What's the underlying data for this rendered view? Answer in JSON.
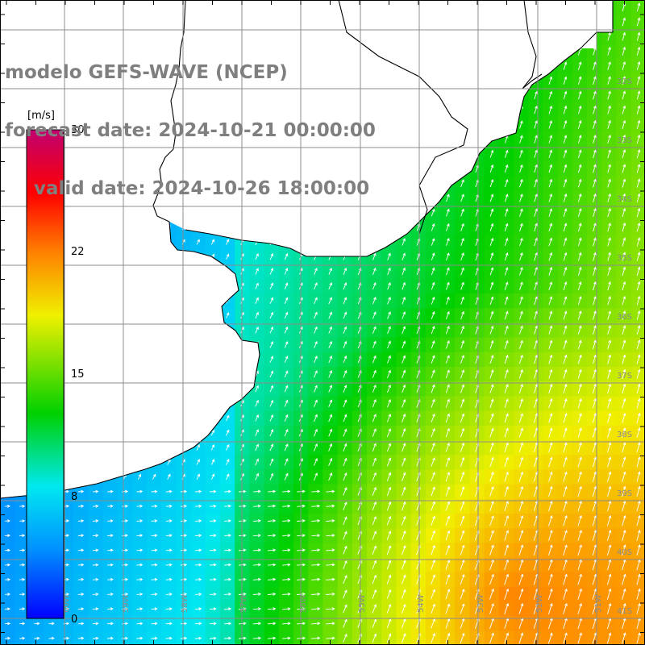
{
  "header": {
    "model": "modelo GEFS-WAVE (NCEP)",
    "forecast": "forecast date: 2024-10-21 00:00:00",
    "valid": "valid date: 2024-10-26 18:00:00"
  },
  "colorbar": {
    "unit": "[m/s]",
    "ticks": [
      {
        "value": 30,
        "label": "30"
      },
      {
        "value": 22,
        "label": "22"
      },
      {
        "value": 15,
        "label": "15"
      },
      {
        "value": 8,
        "label": "8"
      },
      {
        "value": 0,
        "label": "0"
      }
    ],
    "range": [
      0,
      30
    ],
    "gradient_colors": [
      "#0000ff",
      "#0090ff",
      "#00e8f0",
      "#00d000",
      "#7ae000",
      "#f0f000",
      "#ff8000",
      "#ff0000",
      "#c00070"
    ]
  },
  "map": {
    "latitude_labels": [
      "32S",
      "33S",
      "34S",
      "35S",
      "36S",
      "37S",
      "38S",
      "39S",
      "40S",
      "41S"
    ],
    "longitude_labels": [
      "60W",
      "59W",
      "58W",
      "57W",
      "56W",
      "55W",
      "54W",
      "53W",
      "52W",
      "51W"
    ],
    "land_color": "#ffffff",
    "grid_color": "#8c8c8c",
    "coast_color": "#000000",
    "arrow_color": "#ffffff"
  }
}
